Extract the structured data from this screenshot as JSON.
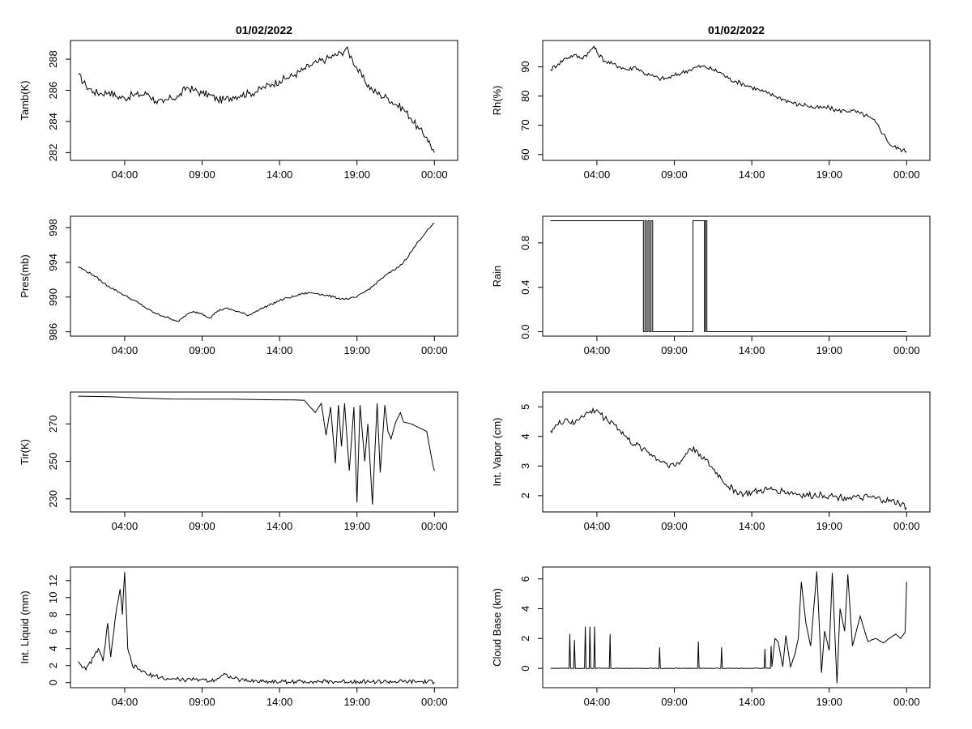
{
  "chart_data": [
    {
      "type": "line",
      "title": "01/02/2022",
      "xlabel": "",
      "ylabel": "Tamb(K)",
      "xlim": [
        0.5,
        25.5
      ],
      "ylim": [
        281.5,
        289.2
      ],
      "yticks": [
        282,
        284,
        286,
        288
      ],
      "ytick_labels": [
        "282",
        "284",
        "286",
        "288"
      ],
      "xticks": [
        4,
        9,
        14,
        19,
        24
      ],
      "xtick_labels": [
        "04:00",
        "09:00",
        "14:00",
        "19:00",
        "00:00"
      ],
      "series": [
        {
          "name": "Tamb",
          "x": [
            1,
            1.5,
            2,
            2.5,
            3,
            3.5,
            4,
            4.5,
            5,
            5.5,
            6,
            6.5,
            7,
            7.5,
            8,
            8.5,
            9,
            9.5,
            10,
            10.5,
            11,
            11.5,
            12,
            12.5,
            13,
            13.5,
            14,
            14.5,
            15,
            15.5,
            16,
            16.5,
            17,
            17.5,
            18,
            18.3,
            18.7,
            19,
            19.5,
            20,
            20.5,
            21,
            21.5,
            22,
            22.5,
            23,
            23.5,
            24
          ],
          "y": [
            287.0,
            286.3,
            285.9,
            285.8,
            285.9,
            285.6,
            285.5,
            285.7,
            285.7,
            285.8,
            285.3,
            285.2,
            285.5,
            285.6,
            286.2,
            286.0,
            285.8,
            285.7,
            285.4,
            285.4,
            285.6,
            285.7,
            285.8,
            285.9,
            286.2,
            286.4,
            286.6,
            286.8,
            287.0,
            287.3,
            287.6,
            287.8,
            288.0,
            288.2,
            288.4,
            288.7,
            288.0,
            287.4,
            286.6,
            286.0,
            285.7,
            285.5,
            285.1,
            284.8,
            284.2,
            283.5,
            283.0,
            282.0
          ]
        }
      ]
    },
    {
      "type": "line",
      "title": "01/02/2022",
      "xlabel": "",
      "ylabel": "Rh(%)",
      "xlim": [
        0.5,
        25.5
      ],
      "ylim": [
        58,
        99
      ],
      "yticks": [
        60,
        70,
        80,
        90
      ],
      "ytick_labels": [
        "60",
        "70",
        "80",
        "90"
      ],
      "xticks": [
        4,
        9,
        14,
        19,
        24
      ],
      "xtick_labels": [
        "04:00",
        "09:00",
        "14:00",
        "19:00",
        "00:00"
      ],
      "series": [
        {
          "name": "Rh",
          "x": [
            1,
            1.5,
            2,
            2.5,
            3,
            3.5,
            3.8,
            4,
            4.5,
            5,
            5.5,
            6,
            6.5,
            7,
            7.5,
            8,
            8.5,
            9,
            9.5,
            10,
            10.5,
            11,
            11.5,
            12,
            12.5,
            13,
            13.5,
            14,
            14.5,
            15,
            15.5,
            16,
            16.5,
            17,
            17.5,
            18,
            18.5,
            19,
            19.5,
            20,
            20.5,
            21,
            21.5,
            22,
            22.5,
            23,
            23.5,
            24
          ],
          "y": [
            89,
            91,
            93,
            94,
            93,
            95,
            97,
            95,
            92,
            91,
            90,
            89,
            90,
            88,
            87,
            86,
            86,
            87,
            88,
            89,
            90,
            90,
            89,
            88,
            86,
            85,
            84,
            83,
            82,
            81,
            80,
            79,
            78,
            77,
            77,
            76,
            76,
            76,
            75,
            75,
            75,
            74,
            73,
            71,
            67,
            63,
            62,
            61
          ]
        }
      ]
    },
    {
      "type": "line",
      "title": "",
      "xlabel": "",
      "ylabel": "Pres(mb)",
      "xlim": [
        0.5,
        25.5
      ],
      "ylim": [
        985.5,
        999.3
      ],
      "yticks": [
        986,
        990,
        994,
        998
      ],
      "ytick_labels": [
        "986",
        "990",
        "994",
        "998"
      ],
      "xticks": [
        4,
        9,
        14,
        19,
        24
      ],
      "xtick_labels": [
        "04:00",
        "09:00",
        "14:00",
        "19:00",
        "00:00"
      ],
      "series": [
        {
          "name": "Pres",
          "x": [
            1,
            1.5,
            2,
            2.5,
            3,
            3.5,
            4,
            4.5,
            5,
            5.5,
            6,
            6.5,
            7,
            7.5,
            8,
            8.5,
            9,
            9.5,
            10,
            10.5,
            11,
            11.5,
            12,
            12.5,
            13,
            13.5,
            14,
            14.5,
            15,
            15.5,
            16,
            16.5,
            17,
            17.5,
            18,
            18.5,
            19,
            19.5,
            20,
            20.5,
            21,
            21.5,
            22,
            22.5,
            23,
            23.5,
            24
          ],
          "y": [
            993.5,
            993.0,
            992.5,
            991.8,
            991.2,
            990.7,
            990.2,
            989.7,
            989.2,
            988.6,
            988.1,
            987.8,
            987.5,
            987.2,
            988.0,
            988.3,
            988.1,
            987.6,
            988.4,
            988.7,
            988.5,
            988.2,
            987.9,
            988.4,
            988.8,
            989.2,
            989.6,
            989.9,
            990.1,
            990.4,
            990.5,
            990.4,
            990.2,
            990.0,
            989.8,
            989.8,
            990.0,
            990.6,
            991.2,
            992.0,
            992.7,
            993.2,
            994.0,
            995.2,
            996.5,
            997.6,
            998.5
          ]
        }
      ]
    },
    {
      "type": "line",
      "title": "",
      "xlabel": "",
      "ylabel": "Rain",
      "xlim": [
        0.5,
        25.5
      ],
      "ylim": [
        -0.04,
        1.04
      ],
      "yticks": [
        0,
        0.4,
        0.8
      ],
      "ytick_labels": [
        "0.0",
        "0.4",
        "0.8"
      ],
      "xticks": [
        4,
        9,
        14,
        19,
        24
      ],
      "xtick_labels": [
        "04:00",
        "09:00",
        "14:00",
        "19:00",
        "00:00"
      ],
      "series": [
        {
          "name": "Rain",
          "x": [
            1,
            7.0,
            7.0,
            7.1,
            7.1,
            7.2,
            7.2,
            7.3,
            7.3,
            7.4,
            7.4,
            7.5,
            7.5,
            7.6,
            7.6,
            7.7,
            7.7,
            10.2,
            10.2,
            10.95,
            10.95,
            11.0,
            11.0,
            11.1,
            11.1,
            24
          ],
          "y": [
            1,
            1,
            0,
            0,
            1,
            1,
            0,
            0,
            1,
            1,
            0,
            0,
            1,
            1,
            0,
            0,
            0,
            0,
            1,
            1,
            0,
            0,
            1,
            1,
            0,
            0
          ]
        }
      ]
    },
    {
      "type": "line",
      "title": "",
      "xlabel": "",
      "ylabel": "Tir(K)",
      "xlim": [
        0.5,
        25.5
      ],
      "ylim": [
        223,
        287
      ],
      "yticks": [
        230,
        250,
        270
      ],
      "ytick_labels": [
        "230",
        "250",
        "270"
      ],
      "xticks": [
        4,
        9,
        14,
        19,
        24
      ],
      "xtick_labels": [
        "04:00",
        "09:00",
        "14:00",
        "19:00",
        "00:00"
      ],
      "series": [
        {
          "name": "Tir",
          "x": [
            1,
            3,
            5,
            7,
            9,
            11,
            13,
            15,
            15.6,
            16.3,
            16.7,
            17.0,
            17.3,
            17.6,
            17.8,
            18.0,
            18.2,
            18.5,
            18.8,
            19.0,
            19.2,
            19.5,
            19.7,
            20.0,
            20.3,
            20.5,
            20.8,
            21.0,
            21.2,
            21.5,
            21.8,
            22.0,
            22.5,
            23.0,
            23.5,
            23.9,
            24
          ],
          "y": [
            284.8,
            284.5,
            283.8,
            283.3,
            283.2,
            283.2,
            282.9,
            282.8,
            282.6,
            276,
            281,
            264,
            279,
            249,
            280,
            258,
            281,
            245,
            279,
            228,
            280,
            250,
            270,
            227,
            281,
            244,
            280,
            266,
            262,
            271,
            276,
            271,
            270,
            268,
            266,
            248,
            245
          ]
        }
      ]
    },
    {
      "type": "line",
      "title": "",
      "xlabel": "",
      "ylabel": "Int. Vapor (cm)",
      "xlim": [
        0.5,
        25.5
      ],
      "ylim": [
        1.45,
        5.5
      ],
      "yticks": [
        2,
        3,
        4,
        5
      ],
      "ytick_labels": [
        "2",
        "3",
        "4",
        "5"
      ],
      "xticks": [
        4,
        9,
        14,
        19,
        24
      ],
      "xtick_labels": [
        "04:00",
        "09:00",
        "14:00",
        "19:00",
        "00:00"
      ],
      "series": [
        {
          "name": "Vapor",
          "x": [
            1,
            1.5,
            2,
            2.5,
            3,
            3.5,
            4,
            4.5,
            5,
            5.5,
            6,
            6.5,
            7,
            7.5,
            8,
            8.5,
            9,
            9.5,
            10,
            10.5,
            11,
            11.5,
            12,
            12.5,
            13,
            13.5,
            14,
            14.5,
            15,
            15.5,
            16,
            16.5,
            17,
            17.5,
            18,
            18.5,
            19,
            19.5,
            20,
            20.5,
            21,
            21.5,
            22,
            22.5,
            23,
            23.5,
            24
          ],
          "y": [
            4.2,
            4.4,
            4.6,
            4.4,
            4.7,
            4.8,
            4.9,
            4.6,
            4.5,
            4.2,
            3.9,
            3.7,
            3.6,
            3.4,
            3.2,
            3.1,
            3.0,
            3.2,
            3.6,
            3.5,
            3.2,
            2.9,
            2.6,
            2.3,
            2.15,
            2.05,
            2.1,
            2.15,
            2.2,
            2.2,
            2.15,
            2.1,
            2.05,
            2.0,
            2.0,
            2.05,
            2.0,
            1.95,
            1.95,
            1.95,
            1.9,
            1.95,
            1.9,
            1.85,
            1.8,
            1.75,
            1.6
          ]
        }
      ]
    },
    {
      "type": "line",
      "title": "",
      "xlabel": "",
      "ylabel": "Int. Liquid (mm)",
      "xlim": [
        0.5,
        25.5
      ],
      "ylim": [
        -0.6,
        13.6
      ],
      "yticks": [
        0,
        2,
        4,
        6,
        8,
        10,
        12
      ],
      "ytick_labels": [
        "0",
        "2",
        "4",
        "6",
        "8",
        "10",
        "12"
      ],
      "xticks": [
        4,
        9,
        14,
        19,
        24
      ],
      "xtick_labels": [
        "04:00",
        "09:00",
        "14:00",
        "19:00",
        "00:00"
      ],
      "series": [
        {
          "name": "Liquid",
          "x": [
            1,
            1.5,
            2,
            2.3,
            2.6,
            2.9,
            3.1,
            3.3,
            3.5,
            3.7,
            3.85,
            4.0,
            4.2,
            4.5,
            5,
            5.5,
            6,
            6.5,
            7,
            7.5,
            8,
            8.5,
            9,
            9.5,
            10,
            10.5,
            11,
            11.5,
            12,
            13,
            14,
            15,
            16,
            17,
            18,
            19,
            20,
            21,
            22,
            23,
            24
          ],
          "y": [
            2.5,
            1.5,
            3,
            4,
            2.5,
            7,
            3,
            6,
            9,
            11,
            8,
            13,
            4,
            2,
            1.5,
            0.9,
            0.8,
            0.5,
            0.4,
            0.4,
            0.3,
            0.35,
            0.4,
            0.2,
            0.5,
            1.0,
            0.5,
            0.3,
            0.2,
            0.15,
            0.1,
            0.1,
            0.15,
            0.1,
            0.1,
            0.15,
            0.1,
            0.1,
            0.1,
            0.1,
            0.05
          ]
        }
      ]
    },
    {
      "type": "line",
      "title": "",
      "xlabel": "",
      "ylabel": "Cloud Base (km)",
      "xlim": [
        0.5,
        25.5
      ],
      "ylim": [
        -1.3,
        6.8
      ],
      "yticks": [
        0,
        2,
        4,
        6
      ],
      "ytick_labels": [
        "0",
        "2",
        "4",
        "6"
      ],
      "xticks": [
        4,
        9,
        14,
        19,
        24
      ],
      "xtick_labels": [
        "04:00",
        "09:00",
        "14:00",
        "19:00",
        "00:00"
      ],
      "series": [
        {
          "name": "CloudBase",
          "x": [
            1,
            2.2,
            2.25,
            2.3,
            2.5,
            2.55,
            2.6,
            3.2,
            3.25,
            3.3,
            3.5,
            3.55,
            3.6,
            3.8,
            3.85,
            3.9,
            4.8,
            4.85,
            4.9,
            8.0,
            8.05,
            8.1,
            10.5,
            10.55,
            10.6,
            12.0,
            12.05,
            12.1,
            14.8,
            14.85,
            14.9,
            15.2,
            15.25,
            15.3,
            15.5,
            15.7,
            16.0,
            16.2,
            16.5,
            16.8,
            17.0,
            17.2,
            17.5,
            17.8,
            18.0,
            18.2,
            18.5,
            18.7,
            19.0,
            19.2,
            19.5,
            19.7,
            20.0,
            20.2,
            20.5,
            21.0,
            21.5,
            22.0,
            22.5,
            23.0,
            23.3,
            23.6,
            23.9,
            24
          ],
          "y": [
            0,
            0,
            2.3,
            0,
            0,
            1.9,
            0,
            0,
            2.8,
            0,
            0,
            2.8,
            0,
            0,
            2.8,
            0,
            0,
            2.3,
            0,
            0,
            1.4,
            0,
            0,
            1.8,
            0,
            0,
            1.4,
            0,
            0,
            1.3,
            0,
            0,
            1.5,
            0.1,
            2,
            1.8,
            0.1,
            2.2,
            0.1,
            1,
            2,
            5.8,
            3,
            1.5,
            4,
            6.5,
            -0.3,
            2.5,
            1.2,
            6.4,
            -1,
            4,
            2.5,
            6.3,
            1.5,
            3.5,
            1.8,
            2.0,
            1.7,
            2.1,
            2.3,
            2.0,
            2.4,
            5.8
          ]
        }
      ]
    }
  ]
}
